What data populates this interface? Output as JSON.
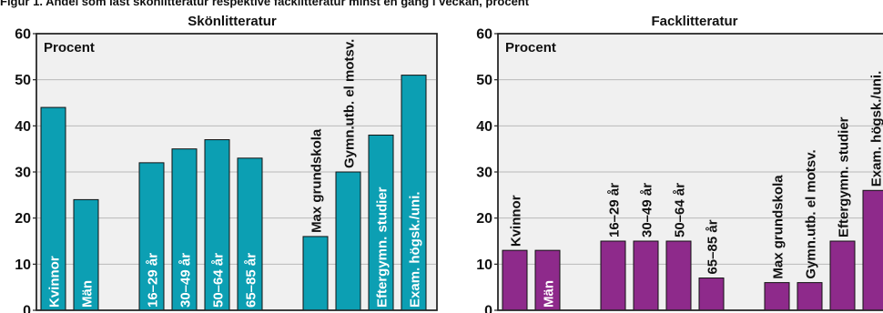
{
  "header": {
    "cut_text": "Figur 1. Andel som läst skönlitteratur respektive facklitteratur minst en gång i veckan, procent"
  },
  "chart_data": [
    {
      "type": "bar",
      "title": "Skönlitteratur",
      "ylabel": "Procent",
      "ylim": [
        0,
        60
      ],
      "yticks": [
        0,
        10,
        20,
        30,
        40,
        50,
        60
      ],
      "color": "#0c9fb3",
      "categories": [
        "Kvinnor",
        "Män",
        "",
        "16–29 år",
        "30–49 år",
        "50–64 år",
        "65–85 år",
        "",
        "Max grundskola",
        "Gymn.utb. el motsv.",
        "Eftergymn. studier",
        "Exam. högsk./uni."
      ],
      "values": [
        44,
        24,
        null,
        32,
        35,
        37,
        33,
        null,
        16,
        30,
        38,
        51
      ]
    },
    {
      "type": "bar",
      "title": "Facklitteratur",
      "ylabel": "Procent",
      "ylim": [
        0,
        60
      ],
      "yticks": [
        0,
        10,
        20,
        30,
        40,
        50,
        60
      ],
      "color": "#8e2a8b",
      "categories": [
        "Kvinnor",
        "Män",
        "",
        "16–29 år",
        "30–49 år",
        "50–64 år",
        "65–85 år",
        "",
        "Max grundskola",
        "Gymn.utb. el motsv.",
        "Eftergymn. studier",
        "Exam. högsk./uni."
      ],
      "values": [
        13,
        13,
        null,
        15,
        15,
        15,
        7,
        null,
        6,
        6,
        15,
        26
      ]
    }
  ]
}
